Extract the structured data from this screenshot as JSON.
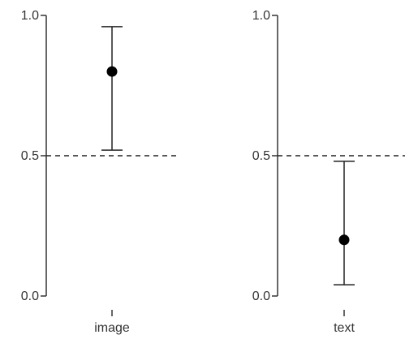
{
  "chart_data": [
    {
      "type": "scatter",
      "categories": [
        "image"
      ],
      "series": [
        {
          "values": [
            0.8
          ],
          "error_low": [
            0.52
          ],
          "error_high": [
            0.96
          ]
        }
      ],
      "ylim": [
        0.0,
        1.0
      ],
      "yticks": [
        "0.0",
        "0.5",
        "1.0"
      ],
      "reference_line": {
        "y": 0.5,
        "style": "dashed"
      },
      "grid": false
    },
    {
      "type": "scatter",
      "categories": [
        "text"
      ],
      "series": [
        {
          "values": [
            0.2
          ],
          "error_low": [
            0.04
          ],
          "error_high": [
            0.48
          ]
        }
      ],
      "ylim": [
        0.0,
        1.0
      ],
      "yticks": [
        "0.0",
        "0.5",
        "1.0"
      ],
      "reference_line": {
        "y": 0.5,
        "style": "dashed"
      },
      "grid": false
    }
  ]
}
